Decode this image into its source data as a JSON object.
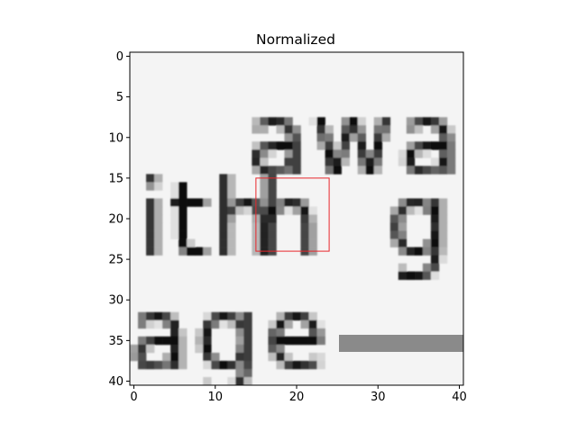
{
  "chart_data": {
    "type": "heatmap",
    "title": "Normalized",
    "xlabel": "",
    "ylabel": "",
    "colormap": "grayscale",
    "grid_size": [
      41,
      41
    ],
    "xlim": [
      -0.5,
      40.5
    ],
    "ylim": [
      40.5,
      -0.5
    ],
    "x_ticks": [
      0,
      10,
      20,
      30,
      40
    ],
    "y_ticks": [
      0,
      5,
      10,
      15,
      20,
      25,
      30,
      35,
      40
    ],
    "visible_text_in_image": [
      "away",
      "ith",
      "h",
      "g",
      "age"
    ],
    "highlight_rect": {
      "x0": 15,
      "y0": 15,
      "x1": 24,
      "y1": 24,
      "color": "#e8262b"
    }
  }
}
